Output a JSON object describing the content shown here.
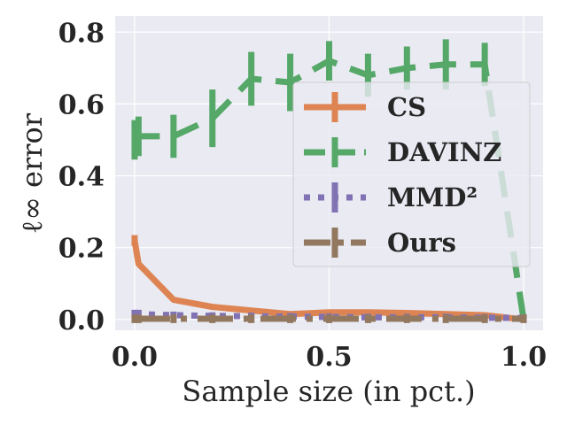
{
  "chart_data": {
    "type": "line",
    "xlabel": "Sample size (in pct.)",
    "ylabel": "ℓ∞ error",
    "xlim": [
      -0.05,
      1.05
    ],
    "ylim": [
      -0.03,
      0.845
    ],
    "xticks": [
      0.0,
      0.5,
      1.0
    ],
    "xtick_labels": [
      "0.0",
      "0.5",
      "1.0"
    ],
    "yticks": [
      0.0,
      0.2,
      0.4,
      0.6,
      0.8
    ],
    "ytick_labels": [
      "0.0",
      "0.2",
      "0.4",
      "0.6",
      "0.8"
    ],
    "grid": true,
    "legend_position": "center-right",
    "series": [
      {
        "name": "CS",
        "color": "#dd8452",
        "style": "solid",
        "x": [
          0.0,
          0.01,
          0.1,
          0.2,
          0.3,
          0.4,
          0.5,
          0.6,
          0.7,
          0.8,
          0.9,
          1.0
        ],
        "y": [
          0.22,
          0.155,
          0.055,
          0.035,
          0.025,
          0.015,
          0.02,
          0.02,
          0.018,
          0.015,
          0.012,
          0.0
        ],
        "err": [
          0.015,
          0.0,
          0.0,
          0.0,
          0.0,
          0.0,
          0.0,
          0.0,
          0.0,
          0.0,
          0.0,
          0.0
        ]
      },
      {
        "name": "DAVINZ",
        "color": "#55a868",
        "style": "dashed",
        "x": [
          0.0,
          0.01,
          0.1,
          0.2,
          0.3,
          0.4,
          0.5,
          0.6,
          0.7,
          0.8,
          0.9,
          1.0
        ],
        "y": [
          0.5,
          0.51,
          0.51,
          0.56,
          0.67,
          0.66,
          0.72,
          0.68,
          0.7,
          0.71,
          0.71,
          0.0
        ],
        "err": [
          0.055,
          0.055,
          0.06,
          0.08,
          0.075,
          0.08,
          0.055,
          0.06,
          0.06,
          0.07,
          0.06,
          0.0
        ]
      },
      {
        "name": "MMD²",
        "color": "#8172b3",
        "style": "dotted",
        "x": [
          0.0,
          0.01,
          0.1,
          0.2,
          0.3,
          0.4,
          0.5,
          0.6,
          0.7,
          0.8,
          0.9,
          1.0
        ],
        "y": [
          0.015,
          0.015,
          0.012,
          0.01,
          0.009,
          0.008,
          0.007,
          0.006,
          0.006,
          0.006,
          0.005,
          0.004
        ],
        "err": [
          0.012,
          0.012,
          0.01,
          0.01,
          0.01,
          0.01,
          0.01,
          0.01,
          0.01,
          0.01,
          0.01,
          0.01
        ]
      },
      {
        "name": "Ours",
        "color": "#937860",
        "style": "dashdot",
        "x": [
          0.0,
          0.01,
          0.1,
          0.2,
          0.3,
          0.4,
          0.5,
          0.6,
          0.7,
          0.8,
          0.9,
          1.0
        ],
        "y": [
          0.002,
          0.002,
          0.002,
          0.002,
          0.002,
          0.002,
          0.002,
          0.002,
          0.002,
          0.002,
          0.002,
          0.002
        ],
        "err": [
          0.012,
          0.012,
          0.012,
          0.012,
          0.012,
          0.012,
          0.012,
          0.012,
          0.012,
          0.012,
          0.012,
          0.012
        ]
      }
    ]
  }
}
